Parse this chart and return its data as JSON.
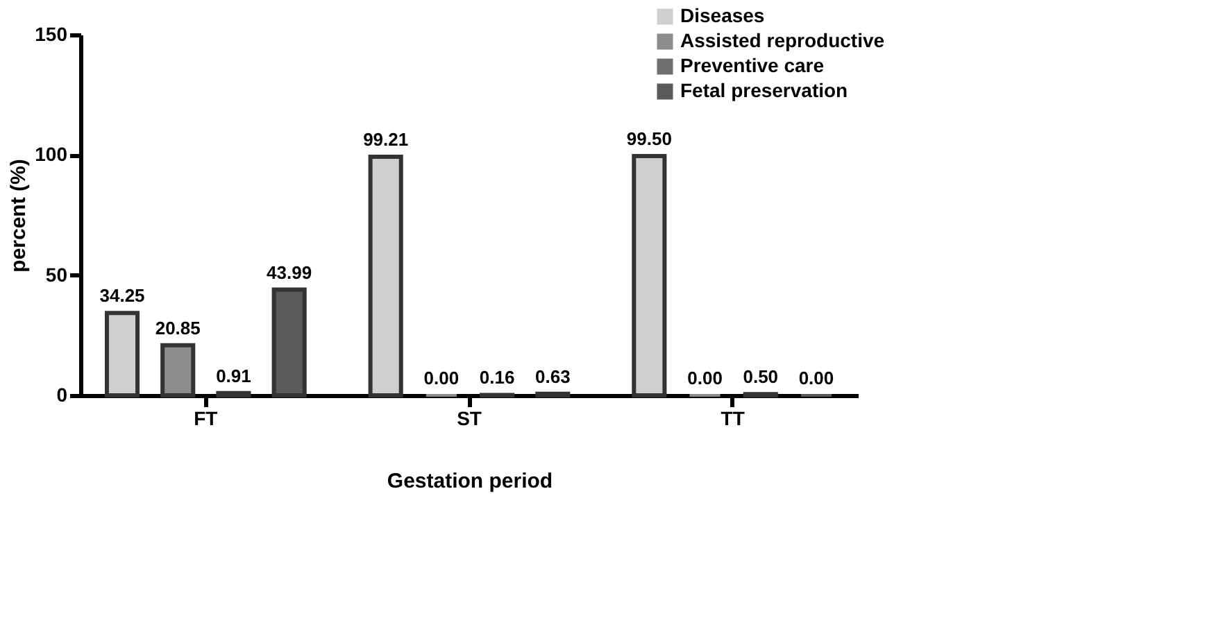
{
  "chart_data": {
    "type": "bar",
    "xlabel": "Gestation period",
    "ylabel": "percent (%)",
    "categories": [
      "FT",
      "ST",
      "TT"
    ],
    "series": [
      {
        "name": "Diseases",
        "color": "#cfcfcf",
        "values": [
          34.25,
          99.21,
          99.5
        ],
        "value_labels": [
          "34.25",
          "99.21",
          "99.50"
        ]
      },
      {
        "name": "Assisted reproductive",
        "color": "#8c8c8c",
        "values": [
          20.85,
          0.0,
          0.0
        ],
        "value_labels": [
          "20.85",
          "0.00",
          "0.00"
        ]
      },
      {
        "name": "Preventive care",
        "color": "#6e6e6e",
        "values": [
          0.91,
          0.16,
          0.5
        ],
        "value_labels": [
          "0.91",
          "0.16",
          "0.50"
        ]
      },
      {
        "name": "Fetal preservation",
        "color": "#5a5a5a",
        "values": [
          43.99,
          0.63,
          0.0
        ],
        "value_labels": [
          "43.99",
          "0.63",
          "0.00"
        ]
      }
    ],
    "ylim": [
      0,
      150
    ],
    "yticks": [
      0,
      50,
      100,
      150
    ],
    "grid": false,
    "legend": "top right"
  }
}
